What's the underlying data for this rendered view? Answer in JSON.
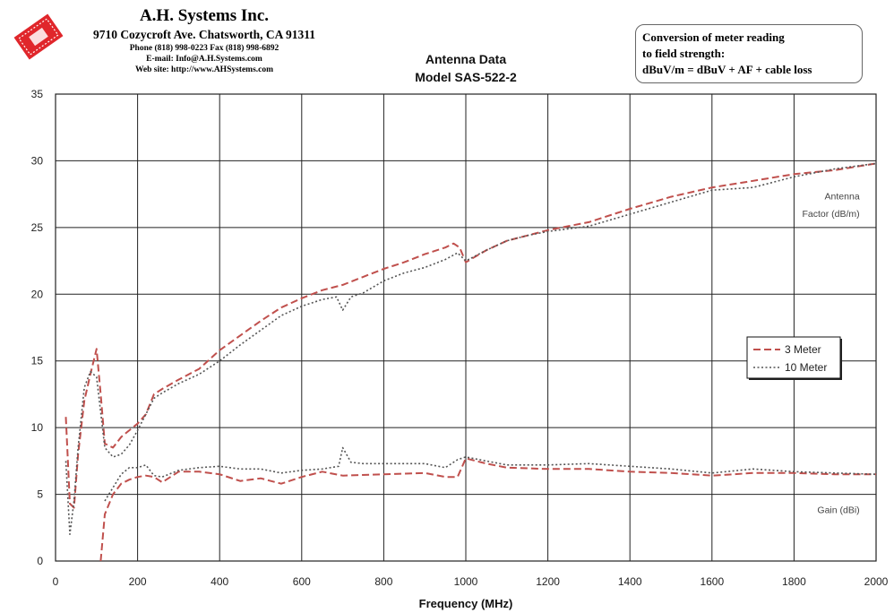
{
  "header": {
    "company": "A.H. Systems Inc.",
    "address": "9710 Cozycroft Ave. Chatsworth, CA 91311",
    "phone": "Phone (818) 998-0223 Fax (818) 998-6892",
    "email": "E-mail:  Info@A.H.Systems.com",
    "web": "Web site:  http://www.AHSystems.com"
  },
  "conversion_note": {
    "line1": "Conversion of meter reading",
    "line2": "to field strength:",
    "line3": "dBuV/m = dBuV + AF + cable loss"
  },
  "colors": {
    "three_meter": "#c0504d",
    "ten_meter": "#555555",
    "grid": "#222222",
    "logo": "#e0262b"
  },
  "chart_data": {
    "type": "line",
    "title": "Antenna Data",
    "subtitle": "Model SAS-522-2",
    "xlabel": "Frequency (MHz)",
    "ylabel": "",
    "xlim": [
      0,
      2000
    ],
    "ylim": [
      0,
      35
    ],
    "xticks": [
      0,
      200,
      400,
      600,
      800,
      1000,
      1200,
      1400,
      1600,
      1800,
      2000
    ],
    "yticks": [
      0,
      5,
      10,
      15,
      20,
      25,
      30,
      35
    ],
    "grid": true,
    "legend_placement": "right",
    "annotations": [
      {
        "text": "Antenna",
        "x": 1960,
        "y": 27.1
      },
      {
        "text": "Factor (dB/m)",
        "x": 1960,
        "y": 25.8
      },
      {
        "text": "Gain (dBi)",
        "x": 1960,
        "y": 3.6
      }
    ],
    "series": [
      {
        "name": "3 Meter",
        "group": "Antenna Factor",
        "style": "dashed",
        "x": [
          25,
          35,
          45,
          55,
          70,
          85,
          100,
          110,
          120,
          140,
          160,
          180,
          200,
          220,
          240,
          260,
          300,
          350,
          400,
          450,
          500,
          550,
          600,
          650,
          700,
          750,
          800,
          850,
          900,
          950,
          970,
          985,
          1000,
          1050,
          1100,
          1150,
          1200,
          1300,
          1400,
          1500,
          1600,
          1700,
          1800,
          1900,
          2000
        ],
        "y": [
          10.8,
          4.3,
          4.0,
          8.0,
          12.0,
          14.0,
          15.9,
          12.5,
          8.8,
          8.5,
          9.3,
          9.8,
          10.3,
          11.0,
          12.5,
          12.9,
          13.6,
          14.4,
          15.8,
          16.9,
          18.0,
          19.0,
          19.7,
          20.3,
          20.7,
          21.3,
          21.9,
          22.4,
          23.0,
          23.5,
          23.8,
          23.5,
          22.4,
          23.3,
          24.0,
          24.4,
          24.8,
          25.4,
          26.4,
          27.3,
          28.0,
          28.5,
          29.0,
          29.3,
          29.8
        ]
      },
      {
        "name": "10 Meter",
        "group": "Antenna Factor",
        "style": "dotted",
        "x": [
          25,
          35,
          45,
          55,
          70,
          85,
          100,
          120,
          140,
          160,
          180,
          200,
          220,
          240,
          260,
          300,
          350,
          400,
          450,
          500,
          550,
          600,
          650,
          685,
          700,
          720,
          750,
          800,
          850,
          900,
          950,
          980,
          1000,
          1050,
          1100,
          1150,
          1200,
          1300,
          1400,
          1500,
          1600,
          1700,
          1800,
          1900,
          2000
        ],
        "y": [
          7.5,
          2.0,
          4.5,
          8.5,
          13.0,
          14.2,
          13.8,
          8.5,
          7.8,
          8.0,
          8.7,
          9.8,
          11.0,
          12.2,
          12.6,
          13.3,
          14.0,
          15.0,
          16.2,
          17.3,
          18.4,
          19.1,
          19.6,
          19.8,
          18.8,
          19.8,
          20.1,
          21.0,
          21.6,
          22.0,
          22.6,
          23.1,
          22.5,
          23.3,
          24.0,
          24.4,
          24.7,
          25.1,
          26.0,
          26.9,
          27.8,
          28.0,
          28.8,
          29.4,
          29.8
        ]
      },
      {
        "name": "3 Meter",
        "group": "Gain",
        "style": "dashed",
        "x": [
          110,
          120,
          140,
          160,
          180,
          200,
          220,
          240,
          260,
          300,
          350,
          400,
          450,
          500,
          550,
          600,
          650,
          700,
          800,
          900,
          950,
          980,
          1000,
          1050,
          1100,
          1200,
          1300,
          1400,
          1500,
          1600,
          1700,
          1800,
          1900,
          2000
        ],
        "y": [
          0.0,
          3.5,
          5.0,
          5.8,
          6.1,
          6.3,
          6.4,
          6.3,
          5.9,
          6.7,
          6.7,
          6.5,
          6.0,
          6.2,
          5.8,
          6.3,
          6.7,
          6.4,
          6.5,
          6.6,
          6.3,
          6.3,
          7.7,
          7.3,
          7.0,
          6.9,
          6.9,
          6.7,
          6.6,
          6.4,
          6.6,
          6.6,
          6.5,
          6.5
        ]
      },
      {
        "name": "10 Meter",
        "group": "Gain",
        "style": "dotted",
        "x": [
          120,
          140,
          160,
          180,
          200,
          220,
          240,
          260,
          300,
          350,
          400,
          450,
          500,
          550,
          600,
          650,
          690,
          700,
          720,
          750,
          800,
          900,
          950,
          980,
          1000,
          1050,
          1100,
          1200,
          1300,
          1400,
          1500,
          1600,
          1700,
          1800,
          1900,
          2000
        ],
        "y": [
          4.5,
          5.5,
          6.5,
          7.0,
          7.0,
          7.2,
          6.4,
          6.3,
          6.8,
          7.0,
          7.1,
          6.9,
          6.9,
          6.6,
          6.8,
          6.9,
          7.1,
          8.5,
          7.4,
          7.3,
          7.3,
          7.3,
          7.0,
          7.6,
          7.8,
          7.5,
          7.2,
          7.2,
          7.3,
          7.1,
          6.9,
          6.6,
          6.9,
          6.7,
          6.6,
          6.5
        ]
      }
    ]
  }
}
